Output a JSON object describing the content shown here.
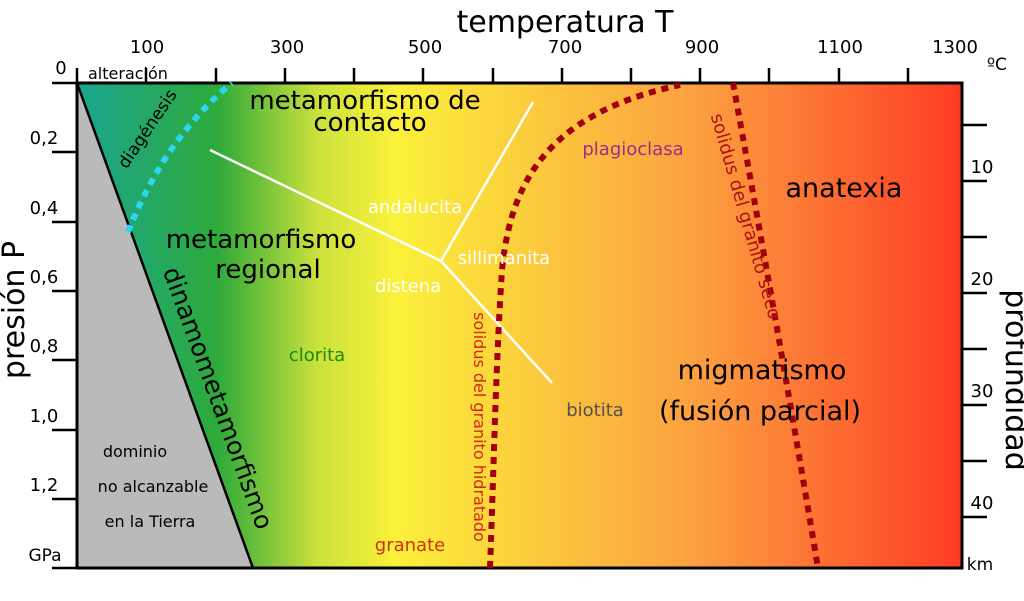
{
  "top_axis": {
    "title": "temperatura T",
    "unit": "ºC",
    "ticks": [
      "100",
      "300",
      "500",
      "700",
      "900",
      "1100",
      "1300"
    ]
  },
  "left_axis": {
    "title": "presión P",
    "unit": "GPa",
    "ticks": [
      "0",
      "0,2",
      "0,4",
      "0,6",
      "0,8",
      "1,0",
      "1,2"
    ]
  },
  "right_axis": {
    "title": "profundidad",
    "unit": "km",
    "ticks": [
      "10",
      "20",
      "30",
      "40"
    ]
  },
  "regions": {
    "alteracion": "alteración",
    "diagenesis": "diagénesis",
    "contacto_1": "metamorfismo de",
    "contacto_2": "contacto",
    "regional_1": "metamorfismo",
    "regional_2": "regional",
    "dinamometamorfismo": "dinamometamorfismo",
    "anatexia": "anatexia",
    "migmatismo_1": "migmatismo",
    "migmatismo_2": "(fusión parcial)",
    "dominio_1": "dominio",
    "dominio_2": "no alcanzable",
    "dominio_3": "en la Tierra"
  },
  "minerals": {
    "andalucita": "andalucita",
    "sillimanita": "sillimanita",
    "distena": "distena",
    "clorita": "clorita",
    "plagioclasa": "plagioclasa",
    "biotita": "biotita",
    "granate": "granate"
  },
  "curves": {
    "solidus_hidratado": "solidus del granito hidratado",
    "solidus_seco": "solidus del granito seco"
  },
  "colors": {
    "teal": "#1aa590",
    "green": "#2eaa3a",
    "yellow": "#fbf13a",
    "orange": "#fba040",
    "red": "#fe3b24",
    "gray": "#bababa",
    "solidus": "#a3000f",
    "diagenesis": "#2bd6f0",
    "clorita": "#1a8a10",
    "plagioclasa": "#9c2c8c",
    "solidus_hidratado_text": "#d42810",
    "solidus_seco_text": "#b01010",
    "granate": "#d03010",
    "biotita": "#505050"
  }
}
